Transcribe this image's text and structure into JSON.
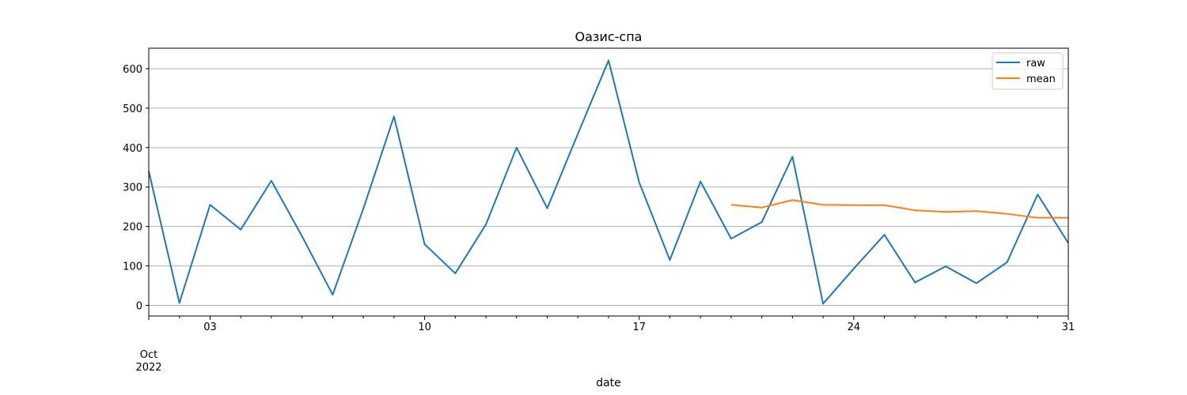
{
  "chart_data": {
    "type": "line",
    "title": "Оазис-спа",
    "xlabel": "date",
    "ylabel": "",
    "x_start": "2022-10-01",
    "x": [
      "2022-10-01",
      "2022-10-02",
      "2022-10-03",
      "2022-10-04",
      "2022-10-05",
      "2022-10-06",
      "2022-10-07",
      "2022-10-08",
      "2022-10-09",
      "2022-10-10",
      "2022-10-11",
      "2022-10-12",
      "2022-10-13",
      "2022-10-14",
      "2022-10-15",
      "2022-10-16",
      "2022-10-17",
      "2022-10-18",
      "2022-10-19",
      "2022-10-20",
      "2022-10-21",
      "2022-10-22",
      "2022-10-23",
      "2022-10-24",
      "2022-10-25",
      "2022-10-26",
      "2022-10-27",
      "2022-10-28",
      "2022-10-29",
      "2022-10-30",
      "2022-10-31"
    ],
    "xlim": [
      "2022-10-01",
      "2022-10-31"
    ],
    "ylim": [
      -27,
      652
    ],
    "x_ticks": [
      {
        "date": "2022-10-03",
        "label": "03"
      },
      {
        "date": "2022-10-10",
        "label": "10"
      },
      {
        "date": "2022-10-17",
        "label": "17"
      },
      {
        "date": "2022-10-24",
        "label": "24"
      },
      {
        "date": "2022-10-31",
        "label": "31"
      }
    ],
    "x_month_label": "Oct",
    "x_year_label": "2022",
    "y_ticks": [
      0,
      100,
      200,
      300,
      400,
      500,
      600
    ],
    "grid": "y",
    "legend": "top-right",
    "series": [
      {
        "name": "raw",
        "color": "#1f77b4",
        "values": [
          340,
          6,
          255,
          192,
          316,
          175,
          27,
          245,
          479,
          155,
          81,
          205,
          400,
          246,
          435,
          621,
          312,
          115,
          314,
          169,
          211,
          377,
          4,
          93,
          179,
          58,
          99,
          56,
          109,
          281,
          158
        ]
      },
      {
        "name": "mean",
        "color": "#ff7f0e",
        "values": [
          null,
          null,
          null,
          null,
          null,
          null,
          null,
          null,
          null,
          null,
          null,
          null,
          null,
          null,
          null,
          null,
          null,
          null,
          null,
          255,
          248,
          267,
          255,
          254,
          254,
          241,
          237,
          239,
          232,
          222,
          222
        ]
      }
    ]
  }
}
